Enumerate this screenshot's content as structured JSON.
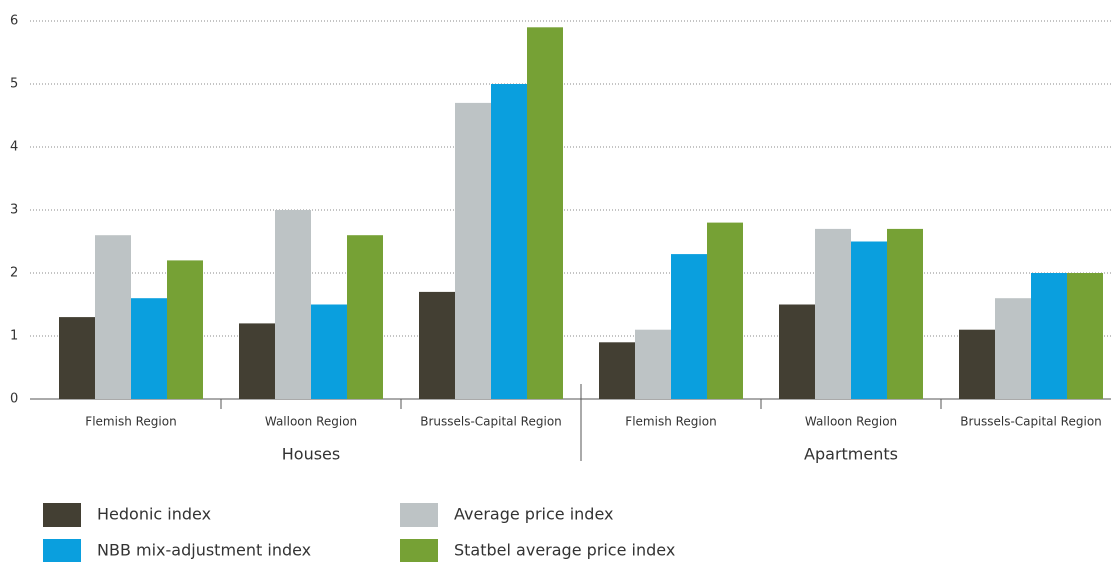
{
  "chart_data": {
    "type": "bar",
    "categories": [
      "Flemish Region",
      "Walloon Region",
      "Brussels-Capital Region",
      "Flemish Region",
      "Walloon Region",
      "Brussels-Capital Region"
    ],
    "groups": [
      "Houses",
      "Apartments"
    ],
    "series": [
      {
        "name": "Hedonic index",
        "color": "#433f33",
        "values": [
          1.3,
          1.2,
          1.7,
          0.9,
          1.5,
          1.1
        ]
      },
      {
        "name": "Average price index",
        "color": "#bdc3c5",
        "values": [
          2.6,
          3.0,
          4.7,
          1.1,
          2.7,
          1.6
        ]
      },
      {
        "name": "NBB mix-adjustment index",
        "color": "#0a9fde",
        "values": [
          1.6,
          1.5,
          5.0,
          2.3,
          2.5,
          2.0
        ]
      },
      {
        "name": "Statbel average price index",
        "color": "#76a135",
        "values": [
          2.2,
          2.6,
          5.9,
          2.8,
          2.7,
          2.0
        ]
      }
    ],
    "ylim": [
      0,
      6
    ],
    "yticks": [
      0,
      1,
      2,
      3,
      4,
      5,
      6
    ],
    "grid": true
  }
}
